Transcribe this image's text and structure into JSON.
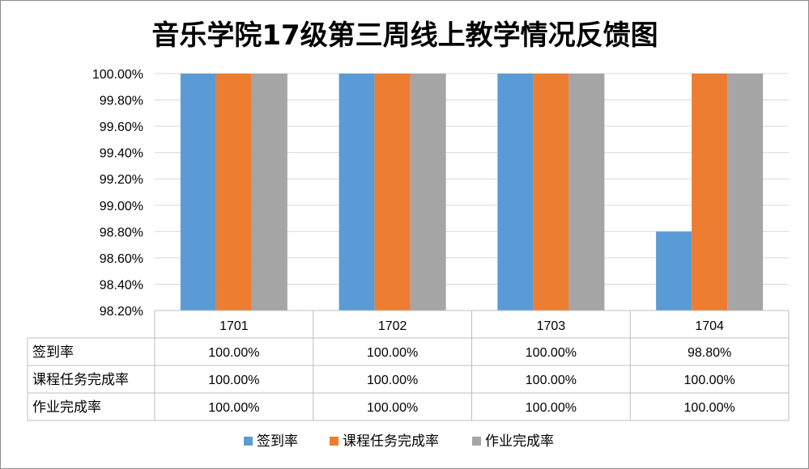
{
  "chart_data": {
    "type": "bar",
    "title": "音乐学院17级第三周线上教学情况反馈图",
    "categories": [
      "1701",
      "1702",
      "1703",
      "1704"
    ],
    "series": [
      {
        "name": "签到率",
        "color": "#5b9bd5",
        "values": [
          100.0,
          100.0,
          100.0,
          98.8
        ],
        "labels": [
          "100.00%",
          "100.00%",
          "100.00%",
          "98.80%"
        ]
      },
      {
        "name": "课程任务完成率",
        "color": "#ed7d31",
        "values": [
          100.0,
          100.0,
          100.0,
          100.0
        ],
        "labels": [
          "100.00%",
          "100.00%",
          "100.00%",
          "100.00%"
        ]
      },
      {
        "name": "作业完成率",
        "color": "#a5a5a5",
        "values": [
          100.0,
          100.0,
          100.0,
          100.0
        ],
        "labels": [
          "100.00%",
          "100.00%",
          "100.00%",
          "100.00%"
        ]
      }
    ],
    "ylim": [
      98.2,
      100.0
    ],
    "yticks": [
      "100.00%",
      "99.80%",
      "99.60%",
      "99.40%",
      "99.20%",
      "99.00%",
      "98.80%",
      "98.60%",
      "98.40%",
      "98.20%"
    ],
    "grid": true,
    "legend_position": "bottom",
    "data_table": true
  }
}
